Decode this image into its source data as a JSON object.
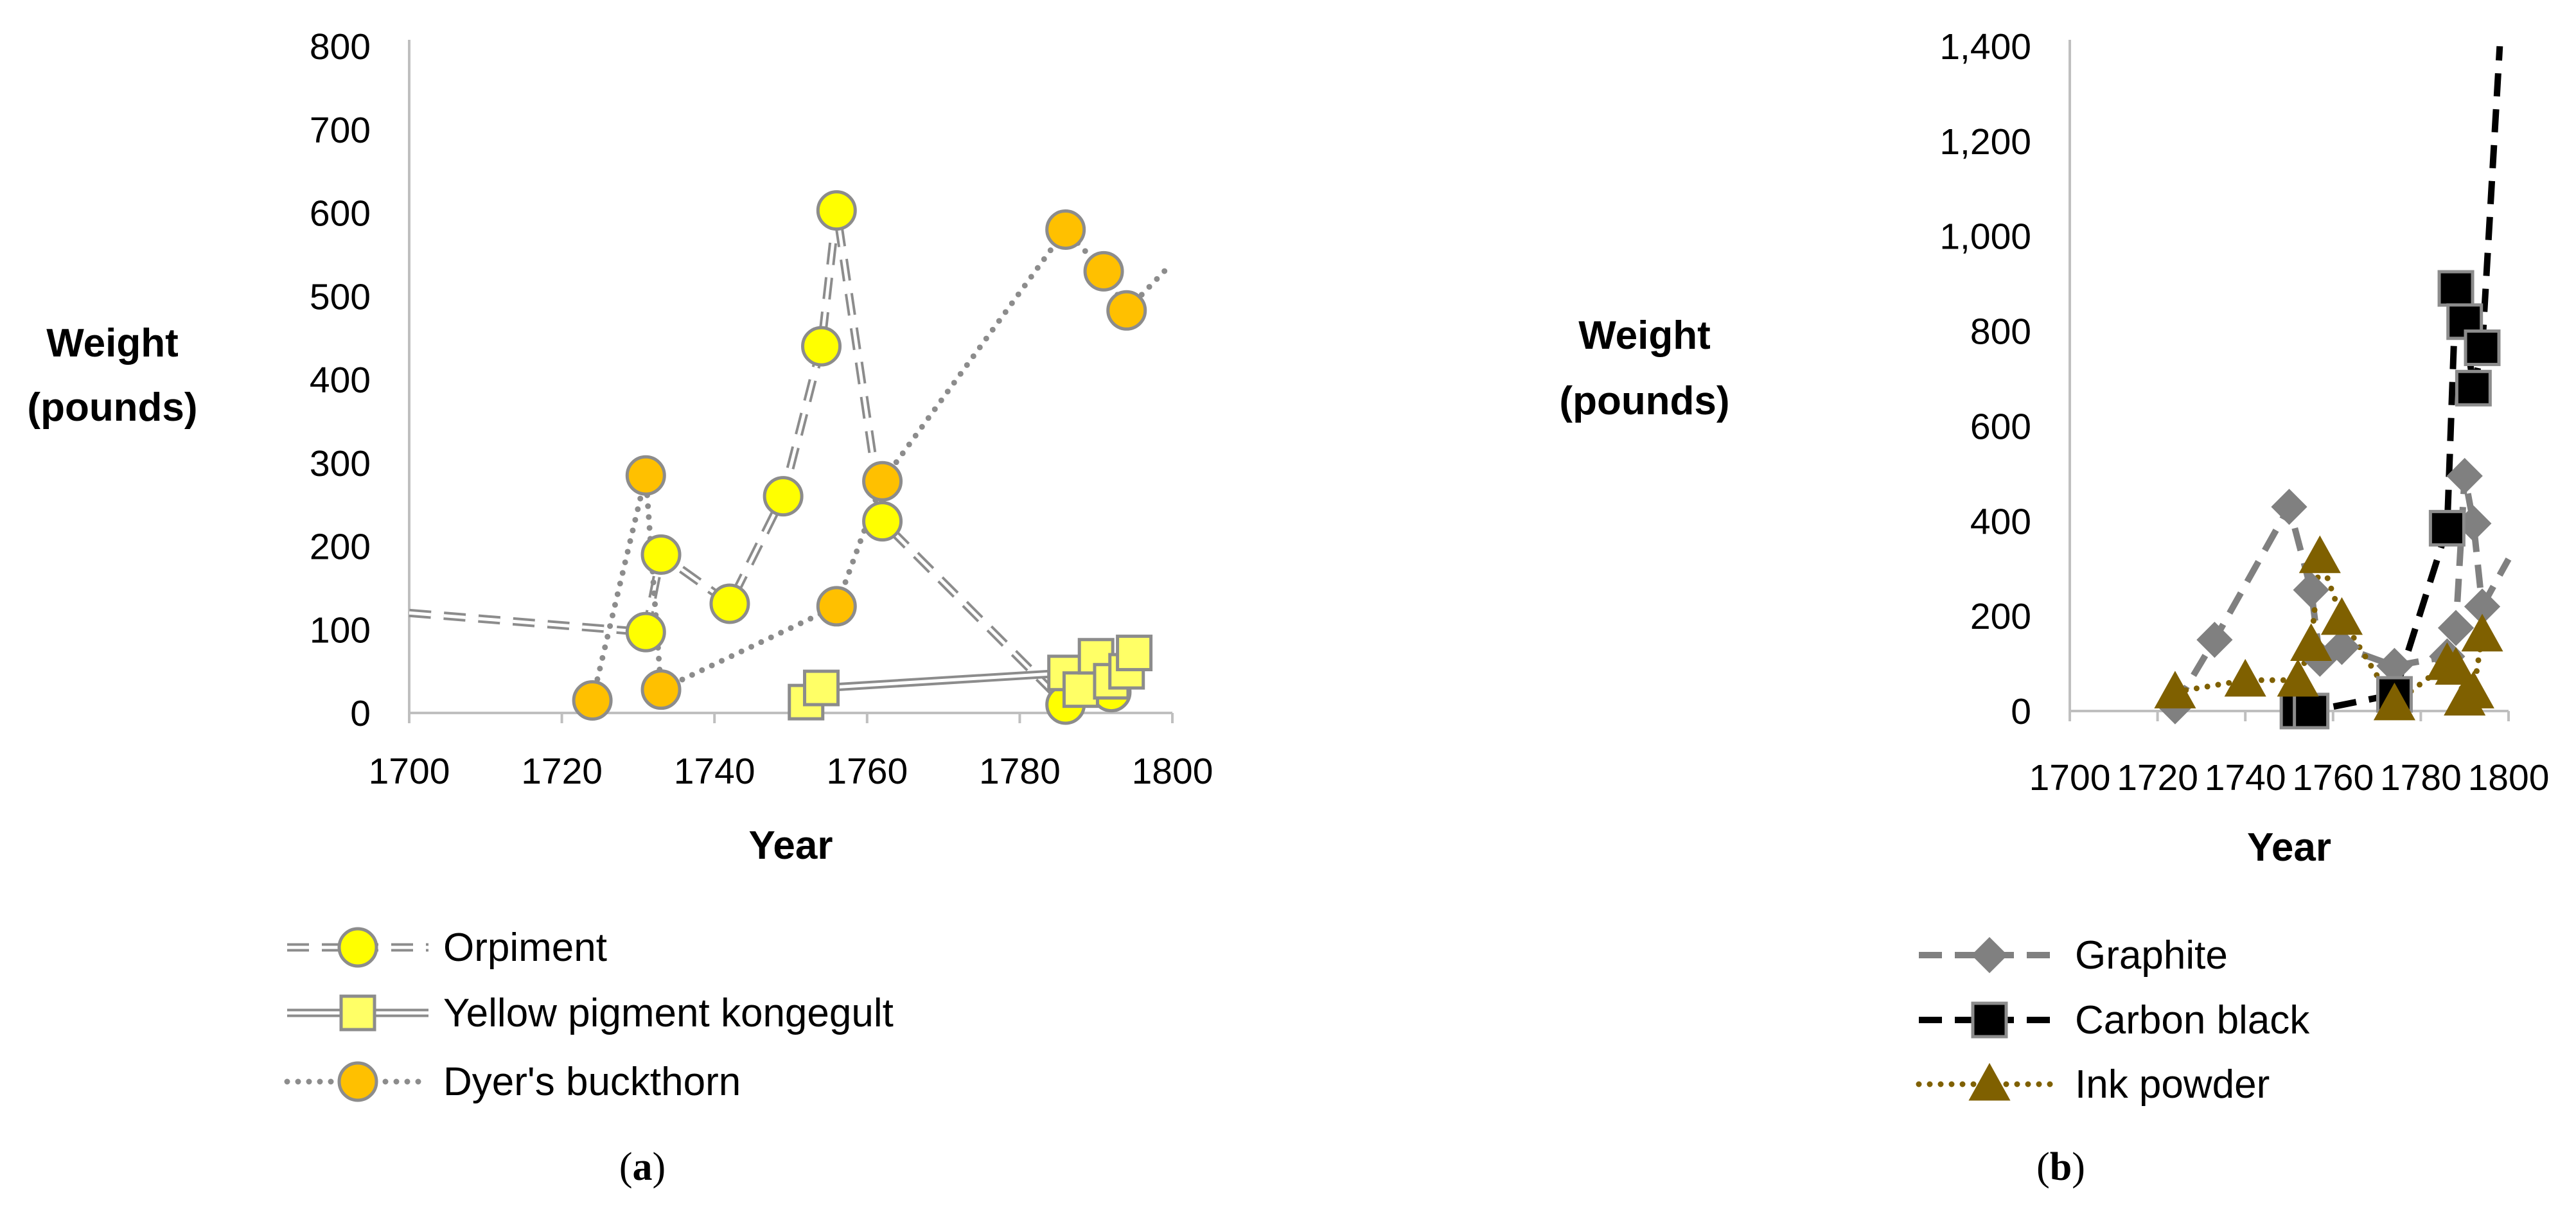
{
  "chart_data": [
    {
      "type": "line",
      "caption_open": "(",
      "caption_letter": "a",
      "caption_close": ")",
      "title": "",
      "xlabel": "Year",
      "ylabel_lines": [
        "Weight",
        "(pounds)"
      ],
      "xlim": [
        1700,
        1800
      ],
      "ylim": [
        0,
        800
      ],
      "x_ticks": [
        1700,
        1720,
        1740,
        1760,
        1780,
        1800
      ],
      "y_ticks": [
        0,
        100,
        200,
        300,
        400,
        500,
        600,
        700,
        800
      ],
      "x_tick_labels": [
        "1700",
        "1720",
        "1740",
        "1760",
        "1780",
        "1800"
      ],
      "y_tick_labels": [
        "0",
        "100",
        "200",
        "300",
        "400",
        "500",
        "600",
        "700",
        "800"
      ],
      "grid": false,
      "legend_position": "bottom",
      "series": [
        {
          "name": "Orpiment",
          "line_style": "double-dashed",
          "line_color": "#8c8c8c",
          "marker": "circle",
          "marker_fill": "#ffff00",
          "points": [
            [
              1731,
              97
            ],
            [
              1733,
              190
            ],
            [
              1742,
              131
            ],
            [
              1749,
              260
            ],
            [
              1754,
              440
            ],
            [
              1756,
              603
            ],
            [
              1762,
              230
            ],
            [
              1786,
              10
            ],
            [
              1792,
              25
            ]
          ],
          "trend_points": [
            [
              1700,
              120
            ],
            [
              1731,
              97
            ]
          ]
        },
        {
          "name": "Yellow pigment kongegult",
          "line_style": "double-solid",
          "line_color": "#8c8c8c",
          "marker": "square",
          "marker_fill": "#ffff66",
          "points": [
            [
              1752,
              13
            ],
            [
              1754,
              30
            ],
            [
              1786,
              48
            ],
            [
              1788,
              28
            ],
            [
              1790,
              68
            ],
            [
              1792,
              38
            ],
            [
              1794,
              50
            ],
            [
              1795,
              72
            ]
          ],
          "trend_points": []
        },
        {
          "name": "Dyer's buckthorn",
          "line_style": "dotted",
          "line_color": "#8c8c8c",
          "marker": "circle",
          "marker_fill": "#ffc000",
          "points": [
            [
              1724,
              15
            ],
            [
              1731,
              285
            ],
            [
              1733,
              28
            ],
            [
              1756,
              128
            ],
            [
              1762,
              278
            ],
            [
              1786,
              580
            ],
            [
              1791,
              530
            ],
            [
              1794,
              483
            ]
          ],
          "trend_points": [
            [
              1794,
              483
            ],
            [
              1800,
              540
            ]
          ]
        }
      ]
    },
    {
      "type": "line",
      "caption_open": "(",
      "caption_letter": "b",
      "caption_close": ")",
      "title": "",
      "xlabel": "Year",
      "ylabel_lines": [
        "Weight",
        "(pounds)"
      ],
      "xlim": [
        1700,
        1800
      ],
      "ylim": [
        0,
        1400
      ],
      "x_ticks": [
        1700,
        1720,
        1740,
        1760,
        1780,
        1800
      ],
      "y_ticks": [
        0,
        200,
        400,
        600,
        800,
        1000,
        1200,
        1400
      ],
      "x_tick_labels": [
        "1700",
        "1720",
        "1740",
        "1760",
        "1780",
        "1800"
      ],
      "y_tick_labels": [
        "0",
        "200",
        "400",
        "600",
        "800",
        "1,000",
        "1,200",
        "1,400"
      ],
      "grid": false,
      "legend_position": "bottom",
      "series": [
        {
          "name": "Graphite",
          "line_style": "dashed",
          "line_color": "#808080",
          "marker": "diamond",
          "marker_fill": "#808080",
          "points": [
            [
              1724,
              10
            ],
            [
              1733,
              150
            ],
            [
              1750,
              430
            ],
            [
              1755,
              255
            ],
            [
              1757,
              110
            ],
            [
              1762,
              135
            ],
            [
              1774,
              95
            ],
            [
              1786,
              115
            ],
            [
              1788,
              175
            ],
            [
              1790,
              495
            ],
            [
              1792,
              395
            ],
            [
              1794,
              220
            ]
          ],
          "trend_points": [
            [
              1794,
              220
            ],
            [
              1800,
              320
            ]
          ]
        },
        {
          "name": "Carbon black",
          "line_style": "dashed",
          "line_color": "#000000",
          "marker": "square",
          "marker_fill": "#000000",
          "points": [
            [
              1752,
              0
            ],
            [
              1755,
              0
            ],
            [
              1774,
              35
            ],
            [
              1786,
              385
            ],
            [
              1788,
              890
            ],
            [
              1790,
              820
            ],
            [
              1792,
              680
            ],
            [
              1794,
              765
            ]
          ],
          "trend_points": [
            [
              1794,
              765
            ],
            [
              1798,
              1400
            ]
          ]
        },
        {
          "name": "Ink powder",
          "line_style": "dotted",
          "line_color": "#7f6000",
          "marker": "triangle",
          "marker_fill": "#7f6000",
          "points": [
            [
              1724,
              40
            ],
            [
              1740,
              65
            ],
            [
              1752,
              65
            ],
            [
              1755,
              140
            ],
            [
              1757,
              325
            ],
            [
              1762,
              195
            ],
            [
              1774,
              15
            ],
            [
              1786,
              100
            ],
            [
              1788,
              90
            ],
            [
              1790,
              25
            ],
            [
              1792,
              40
            ],
            [
              1794,
              160
            ]
          ],
          "trend_points": []
        }
      ]
    }
  ]
}
